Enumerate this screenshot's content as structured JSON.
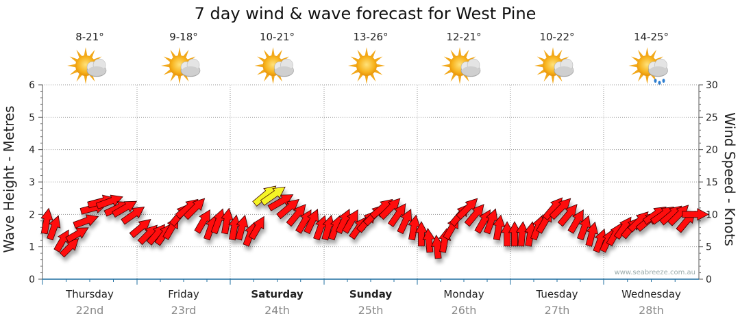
{
  "chart_data": {
    "type": "wind-wave-forecast",
    "title": "7 day wind & wave forecast for West Pine",
    "left_axis": {
      "label": "Wave Height - Metres",
      "range": [
        0,
        6
      ],
      "ticks": [
        "0",
        "1",
        "2",
        "3",
        "4",
        "5",
        "6"
      ]
    },
    "right_axis": {
      "label": "Wind Speed - Knots",
      "range": [
        0,
        30
      ],
      "ticks": [
        "0",
        "5",
        "10",
        "15",
        "20",
        "25",
        "30"
      ]
    },
    "watermark": "www.seabreeze.com.au",
    "days": [
      {
        "name": "Thursday",
        "date": "22nd",
        "temp": "8-21°",
        "icon": "partly-cloudy-icon",
        "bold": false
      },
      {
        "name": "Friday",
        "date": "23rd",
        "temp": "9-18°",
        "icon": "partly-cloudy-icon",
        "bold": false
      },
      {
        "name": "Saturday",
        "date": "24th",
        "temp": "10-21°",
        "icon": "partly-cloudy-icon",
        "bold": true
      },
      {
        "name": "Sunday",
        "date": "25th",
        "temp": "13-26°",
        "icon": "sunny-icon",
        "bold": true
      },
      {
        "name": "Monday",
        "date": "26th",
        "temp": "12-21°",
        "icon": "partly-cloudy-icon",
        "bold": false
      },
      {
        "name": "Tuesday",
        "date": "27th",
        "temp": "10-22°",
        "icon": "partly-cloudy-icon",
        "bold": false
      },
      {
        "name": "Wednesday",
        "date": "28th",
        "temp": "14-25°",
        "icon": "showers-icon",
        "bold": false
      }
    ],
    "wind_series": {
      "x_days": [
        0,
        0.08,
        0.17,
        0.25,
        0.33,
        0.42,
        0.5,
        0.58,
        0.67,
        0.75,
        0.83,
        0.92,
        1,
        1.08,
        1.17,
        1.25,
        1.33,
        1.42,
        1.5,
        1.58,
        1.67,
        1.75,
        1.83,
        1.92,
        2,
        2.08,
        2.17,
        2.25,
        2.33,
        2.42,
        2.5,
        2.58,
        2.67,
        2.75,
        2.83,
        2.92,
        3,
        3.08,
        3.17,
        3.25,
        3.33,
        3.42,
        3.5,
        3.58,
        3.67,
        3.75,
        3.83,
        3.92,
        4,
        4.08,
        4.17,
        4.25,
        4.33,
        4.42,
        4.5,
        4.58,
        4.67,
        4.75,
        4.83,
        4.92,
        5,
        5.08,
        5.17,
        5.25,
        5.33,
        5.42,
        5.5,
        5.58,
        5.67,
        5.75,
        5.83,
        5.92,
        6,
        6.08,
        6.17,
        6.25,
        6.33,
        6.42,
        6.5,
        6.58,
        6.67,
        6.75,
        6.83,
        6.92
      ],
      "speed_knots": [
        9,
        8,
        6,
        5,
        7,
        9,
        11,
        12,
        12,
        11,
        11,
        10,
        8,
        7,
        7,
        7,
        8,
        10,
        11,
        11,
        9,
        8,
        9,
        9,
        8,
        8,
        7,
        8,
        13,
        13,
        12,
        11,
        10,
        9,
        9,
        8,
        8,
        8,
        9,
        9,
        8,
        9,
        10,
        11,
        11,
        10,
        9,
        8,
        7,
        6,
        5,
        6,
        8,
        10,
        11,
        10,
        9,
        9,
        8,
        7,
        7,
        7,
        7,
        8,
        9,
        11,
        11,
        10,
        9,
        8,
        7,
        6,
        6,
        7,
        8,
        8,
        9,
        9,
        10,
        10,
        10,
        10,
        9,
        10
      ],
      "direction_deg": [
        80,
        70,
        60,
        45,
        30,
        20,
        15,
        15,
        20,
        25,
        30,
        35,
        40,
        45,
        50,
        55,
        60,
        50,
        40,
        45,
        60,
        70,
        70,
        80,
        80,
        75,
        70,
        60,
        40,
        35,
        30,
        40,
        50,
        60,
        65,
        70,
        75,
        70,
        65,
        60,
        55,
        50,
        45,
        40,
        45,
        55,
        65,
        80,
        90,
        95,
        95,
        80,
        60,
        50,
        45,
        50,
        60,
        70,
        80,
        90,
        90,
        85,
        80,
        70,
        60,
        50,
        45,
        50,
        60,
        70,
        75,
        70,
        65,
        60,
        55,
        50,
        45,
        40,
        35,
        35,
        40,
        45,
        50,
        0
      ],
      "gust_highlight_knots": 12
    }
  }
}
